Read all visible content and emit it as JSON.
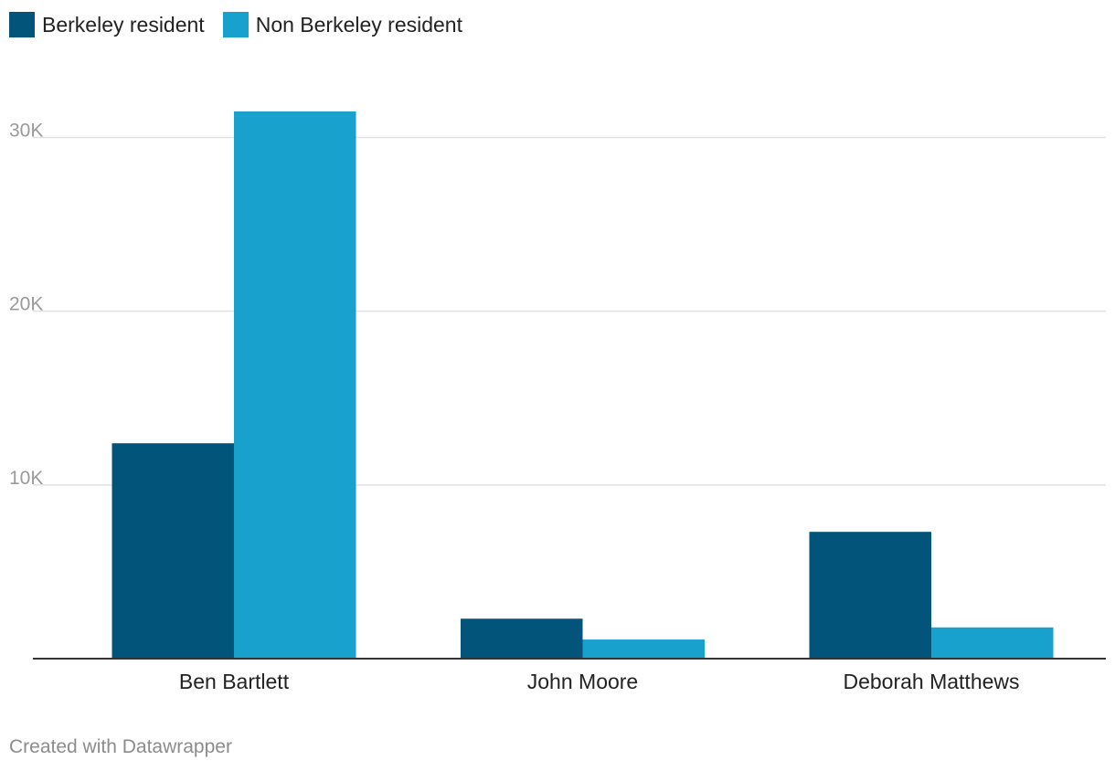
{
  "legend": [
    {
      "label": "Berkeley resident",
      "color": "#03547b"
    },
    {
      "label": "Non Berkeley resident",
      "color": "#18a1cd"
    }
  ],
  "chart_data": {
    "type": "bar",
    "title": "",
    "xlabel": "",
    "ylabel": "",
    "categories": [
      "Ben Bartlett",
      "John Moore",
      "Deborah Matthews"
    ],
    "series": [
      {
        "name": "Berkeley resident",
        "color": "#03547b",
        "values": [
          12400,
          2300,
          7300
        ]
      },
      {
        "name": "Non Berkeley resident",
        "color": "#18a1cd",
        "values": [
          31500,
          1100,
          1800
        ]
      }
    ],
    "ylim": [
      0,
      31500
    ],
    "yticks": [
      {
        "value": 10000,
        "label": "10K"
      },
      {
        "value": 20000,
        "label": "20K"
      },
      {
        "value": 30000,
        "label": "30K"
      }
    ],
    "grid": true,
    "legend_position": "top-left"
  },
  "footer": {
    "credit": "Created with Datawrapper"
  }
}
